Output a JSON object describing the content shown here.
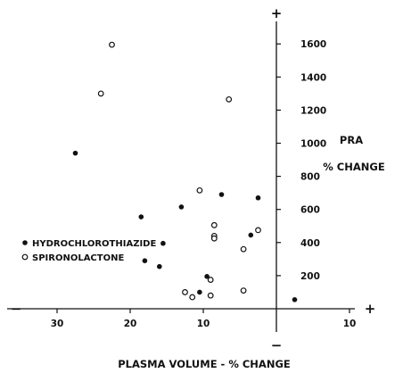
{
  "chart_data": {
    "type": "scatter",
    "xlabel": "PLASMA VOLUME  -  % CHANGE",
    "ylabel_line1": "PRA",
    "ylabel_line2": "% CHANGE",
    "x_ticks": [
      {
        "value": -30,
        "label": "30"
      },
      {
        "value": -20,
        "label": "20"
      },
      {
        "value": -10,
        "label": "10"
      },
      {
        "value": 10,
        "label": "10"
      }
    ],
    "y_ticks": [
      {
        "value": 200,
        "label": "200"
      },
      {
        "value": 400,
        "label": "400"
      },
      {
        "value": 600,
        "label": "600"
      },
      {
        "value": 800,
        "label": "800"
      },
      {
        "value": 1000,
        "label": "1000"
      },
      {
        "value": 1200,
        "label": "1200"
      },
      {
        "value": 1400,
        "label": "1400"
      },
      {
        "value": 1600,
        "label": "1600"
      }
    ],
    "axis_signs": {
      "x_positive": "+",
      "x_negative": "−",
      "y_positive": "+",
      "y_negative": "−"
    },
    "xlim": [
      -42,
      12
    ],
    "ylim": [
      -150,
      1720
    ],
    "grid": false,
    "legend_placement": "left",
    "series": [
      {
        "name": "HYDROCHLOROTHIAZIDE",
        "marker": "filled-circle",
        "color": "#111111",
        "points": [
          {
            "x": -27.5,
            "y": 940
          },
          {
            "x": -18.5,
            "y": 555
          },
          {
            "x": -18,
            "y": 290
          },
          {
            "x": -15.5,
            "y": 395
          },
          {
            "x": -16,
            "y": 255
          },
          {
            "x": -13,
            "y": 615
          },
          {
            "x": -10.5,
            "y": 100
          },
          {
            "x": -9.5,
            "y": 195
          },
          {
            "x": -7.5,
            "y": 690
          },
          {
            "x": -3.5,
            "y": 445
          },
          {
            "x": -2.5,
            "y": 670
          },
          {
            "x": 2.5,
            "y": 55
          }
        ]
      },
      {
        "name": "SPIRONOLACTONE",
        "marker": "open-circle",
        "color": "#111111",
        "points": [
          {
            "x": -22.5,
            "y": 1595
          },
          {
            "x": -24,
            "y": 1300
          },
          {
            "x": -6.5,
            "y": 1265
          },
          {
            "x": -10.5,
            "y": 715
          },
          {
            "x": -8.5,
            "y": 505
          },
          {
            "x": -8.5,
            "y": 440
          },
          {
            "x": -8.5,
            "y": 425
          },
          {
            "x": -9,
            "y": 175
          },
          {
            "x": -12.5,
            "y": 100
          },
          {
            "x": -11.5,
            "y": 70
          },
          {
            "x": -9,
            "y": 80
          },
          {
            "x": -4.5,
            "y": 360
          },
          {
            "x": -2.5,
            "y": 475
          },
          {
            "x": -4.5,
            "y": 110
          }
        ]
      }
    ]
  }
}
